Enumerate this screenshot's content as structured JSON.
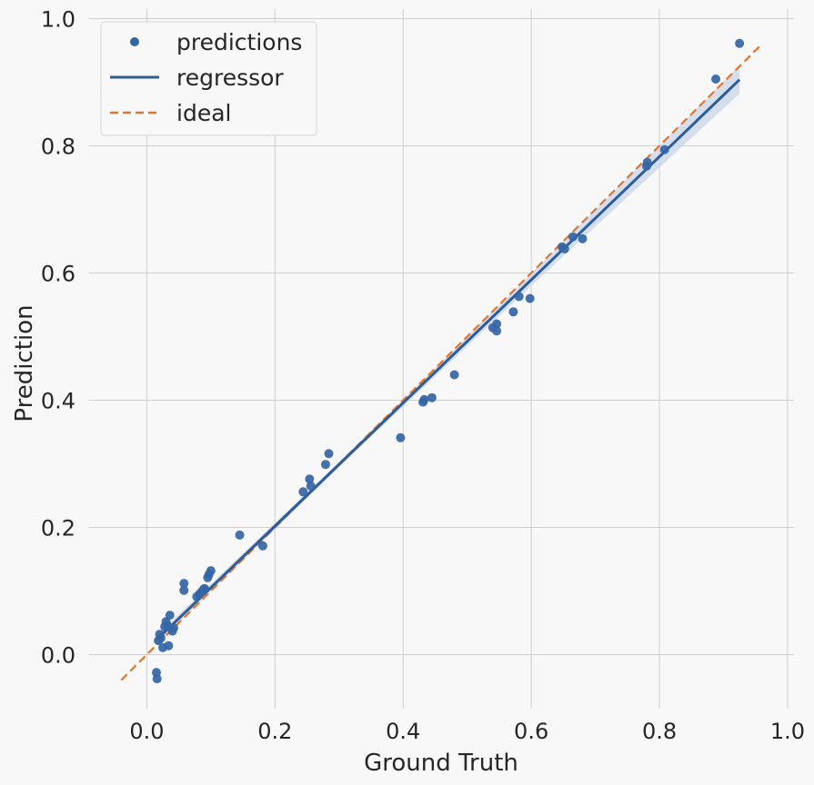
{
  "chart_data": {
    "type": "scatter",
    "xlabel": "Ground Truth",
    "ylabel": "Prediction",
    "xlim": [
      -0.09,
      1.01
    ],
    "ylim": [
      -0.085,
      1.015
    ],
    "xticks": [
      0.0,
      0.2,
      0.4,
      0.6,
      0.8,
      1.0
    ],
    "xtick_labels": [
      "0.0",
      "0.2",
      "0.4",
      "0.6",
      "0.8",
      "1.0"
    ],
    "yticks": [
      0.0,
      0.2,
      0.4,
      0.6,
      0.8,
      1.0
    ],
    "ytick_labels": [
      "0.0",
      "0.2",
      "0.4",
      "0.6",
      "0.8",
      "1.0"
    ],
    "grid": true,
    "legend_position": "top-left",
    "colors": {
      "background": "#f8f8f8",
      "grid": "#cfcfcf",
      "points": "#3465a4",
      "regressor": "#2e5c99",
      "band": "#c8d6ea",
      "ideal": "#dd7733"
    },
    "series": [
      {
        "name": "predictions",
        "kind": "points",
        "x": [
          0.015,
          0.016,
          0.018,
          0.02,
          0.022,
          0.025,
          0.028,
          0.03,
          0.032,
          0.034,
          0.036,
          0.04,
          0.042,
          0.058,
          0.058,
          0.078,
          0.082,
          0.085,
          0.088,
          0.09,
          0.095,
          0.097,
          0.1,
          0.145,
          0.181,
          0.244,
          0.254,
          0.256,
          0.279,
          0.284,
          0.396,
          0.431,
          0.433,
          0.445,
          0.48,
          0.54,
          0.546,
          0.546,
          0.572,
          0.581,
          0.598,
          0.648,
          0.652,
          0.665,
          0.68,
          0.78,
          0.781,
          0.808,
          0.888,
          0.925
        ],
        "y": [
          -0.028,
          -0.038,
          0.022,
          0.032,
          0.026,
          0.011,
          0.044,
          0.052,
          0.046,
          0.014,
          0.062,
          0.037,
          0.042,
          0.112,
          0.101,
          0.091,
          0.095,
          0.098,
          0.102,
          0.104,
          0.121,
          0.126,
          0.132,
          0.188,
          0.171,
          0.256,
          0.276,
          0.265,
          0.299,
          0.316,
          0.341,
          0.397,
          0.401,
          0.404,
          0.44,
          0.514,
          0.52,
          0.509,
          0.539,
          0.563,
          0.56,
          0.641,
          0.638,
          0.657,
          0.654,
          0.768,
          0.774,
          0.794,
          0.905,
          0.961
        ]
      },
      {
        "name": "regressor",
        "kind": "line",
        "x": [
          0.015,
          0.925
        ],
        "y": [
          0.023,
          0.904
        ],
        "band_halfwidth": [
          0.007,
          0.004,
          0.01,
          0.022
        ]
      },
      {
        "name": "ideal",
        "kind": "dashed-line",
        "x": [
          -0.04,
          0.96
        ],
        "y": [
          -0.04,
          0.96
        ]
      }
    ]
  }
}
